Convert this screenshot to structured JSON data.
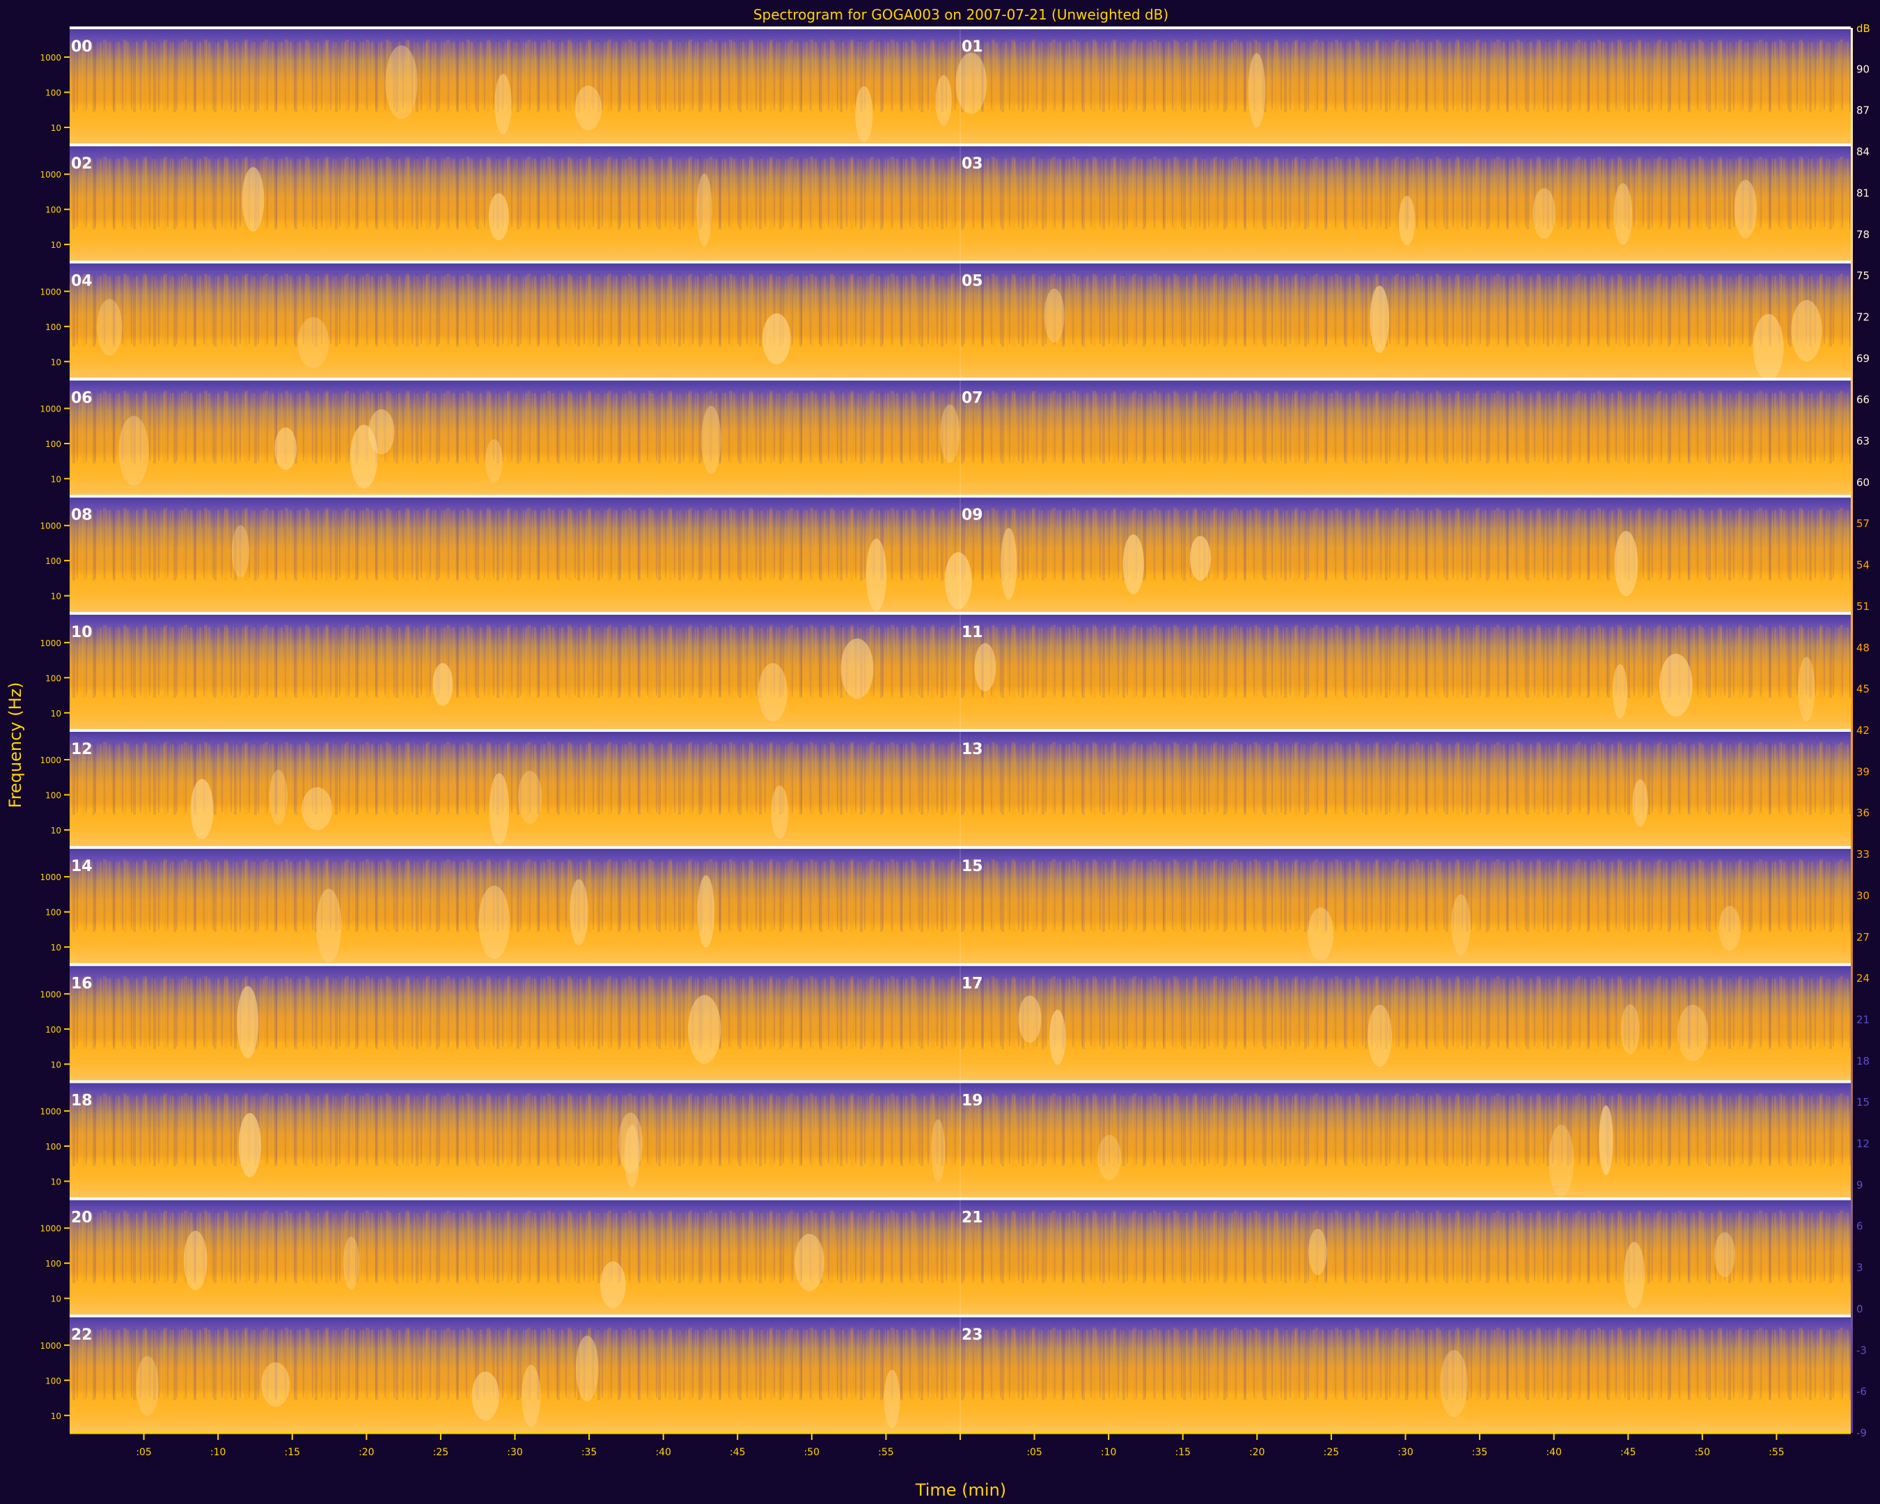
{
  "chart_data": {
    "type": "heatmap",
    "title": "Spectrogram for GOGA003 on 2007-07-21 (Unweighted dB)",
    "xlabel": "Time (min)",
    "ylabel": "Frequency (Hz)",
    "x_tick_labels": [
      ":05",
      ":10",
      ":15",
      ":20",
      ":25",
      ":30",
      ":35",
      ":40",
      ":45",
      ":50",
      ":55",
      "",
      ":05",
      ":10",
      ":15",
      ":20",
      ":25",
      ":30",
      ":35",
      ":40",
      ":45",
      ":50",
      ":55"
    ],
    "y_tick_labels": [
      "1000",
      "100",
      "10"
    ],
    "y_scale": "log",
    "panel_labels": [
      "00",
      "01",
      "02",
      "03",
      "04",
      "05",
      "06",
      "07",
      "08",
      "09",
      "10",
      "11",
      "12",
      "13",
      "14",
      "15",
      "16",
      "17",
      "18",
      "19",
      "20",
      "21",
      "22",
      "23"
    ],
    "colorbar": {
      "unit": "dB",
      "range": [
        -9,
        93
      ],
      "tick_values": [
        90,
        87,
        84,
        81,
        78,
        75,
        72,
        69,
        66,
        63,
        60,
        57,
        54,
        51,
        48,
        45,
        42,
        39,
        36,
        33,
        30,
        27,
        24,
        21,
        18,
        15,
        12,
        9,
        6,
        3,
        0,
        -3,
        -6,
        -9
      ],
      "colors": {
        "low": "#5a3fb0",
        "mid": "#ffa500",
        "high": "#fff3c6"
      }
    },
    "grid": false
  }
}
